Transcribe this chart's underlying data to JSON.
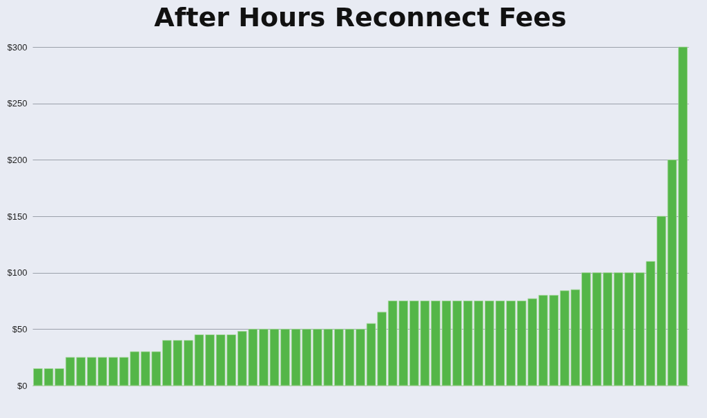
{
  "chart_data": {
    "type": "bar",
    "title": "After Hours Reconnect Fees",
    "categories": [
      null,
      null,
      null,
      null,
      null,
      null,
      null,
      null,
      null,
      null,
      null,
      null,
      null,
      null,
      null,
      null,
      null,
      null,
      null,
      null,
      null,
      null,
      null,
      null,
      null,
      null,
      null,
      null,
      null,
      null,
      null,
      null,
      null,
      null,
      null,
      null,
      null,
      null,
      null,
      null,
      null,
      null,
      null,
      null,
      null,
      null,
      null,
      null,
      null,
      null,
      null,
      null,
      null,
      null,
      null,
      null,
      null,
      null,
      null,
      null,
      null
    ],
    "values": [
      15,
      15,
      15,
      25,
      25,
      25,
      25,
      25,
      25,
      30,
      30,
      30,
      40,
      40,
      40,
      45,
      45,
      45,
      45,
      48,
      50,
      50,
      50,
      50,
      50,
      50,
      50,
      50,
      50,
      50,
      50,
      55,
      65,
      75,
      75,
      75,
      75,
      75,
      75,
      75,
      75,
      75,
      75,
      75,
      75,
      75,
      77,
      80,
      80,
      84,
      85,
      100,
      100,
      100,
      100,
      100,
      100,
      110,
      150,
      200,
      300
    ],
    "color": "#54b648",
    "ylim": [
      0,
      300
    ],
    "yticks": [
      {
        "value": 0,
        "label": "$0"
      },
      {
        "value": 50,
        "label": "$50"
      },
      {
        "value": 100,
        "label": "$100"
      },
      {
        "value": 150,
        "label": "$150"
      },
      {
        "value": 200,
        "label": "$200"
      },
      {
        "value": 250,
        "label": "$250"
      },
      {
        "value": 300,
        "label": "$300"
      }
    ],
    "grid": "y",
    "tick_labels": "y"
  }
}
